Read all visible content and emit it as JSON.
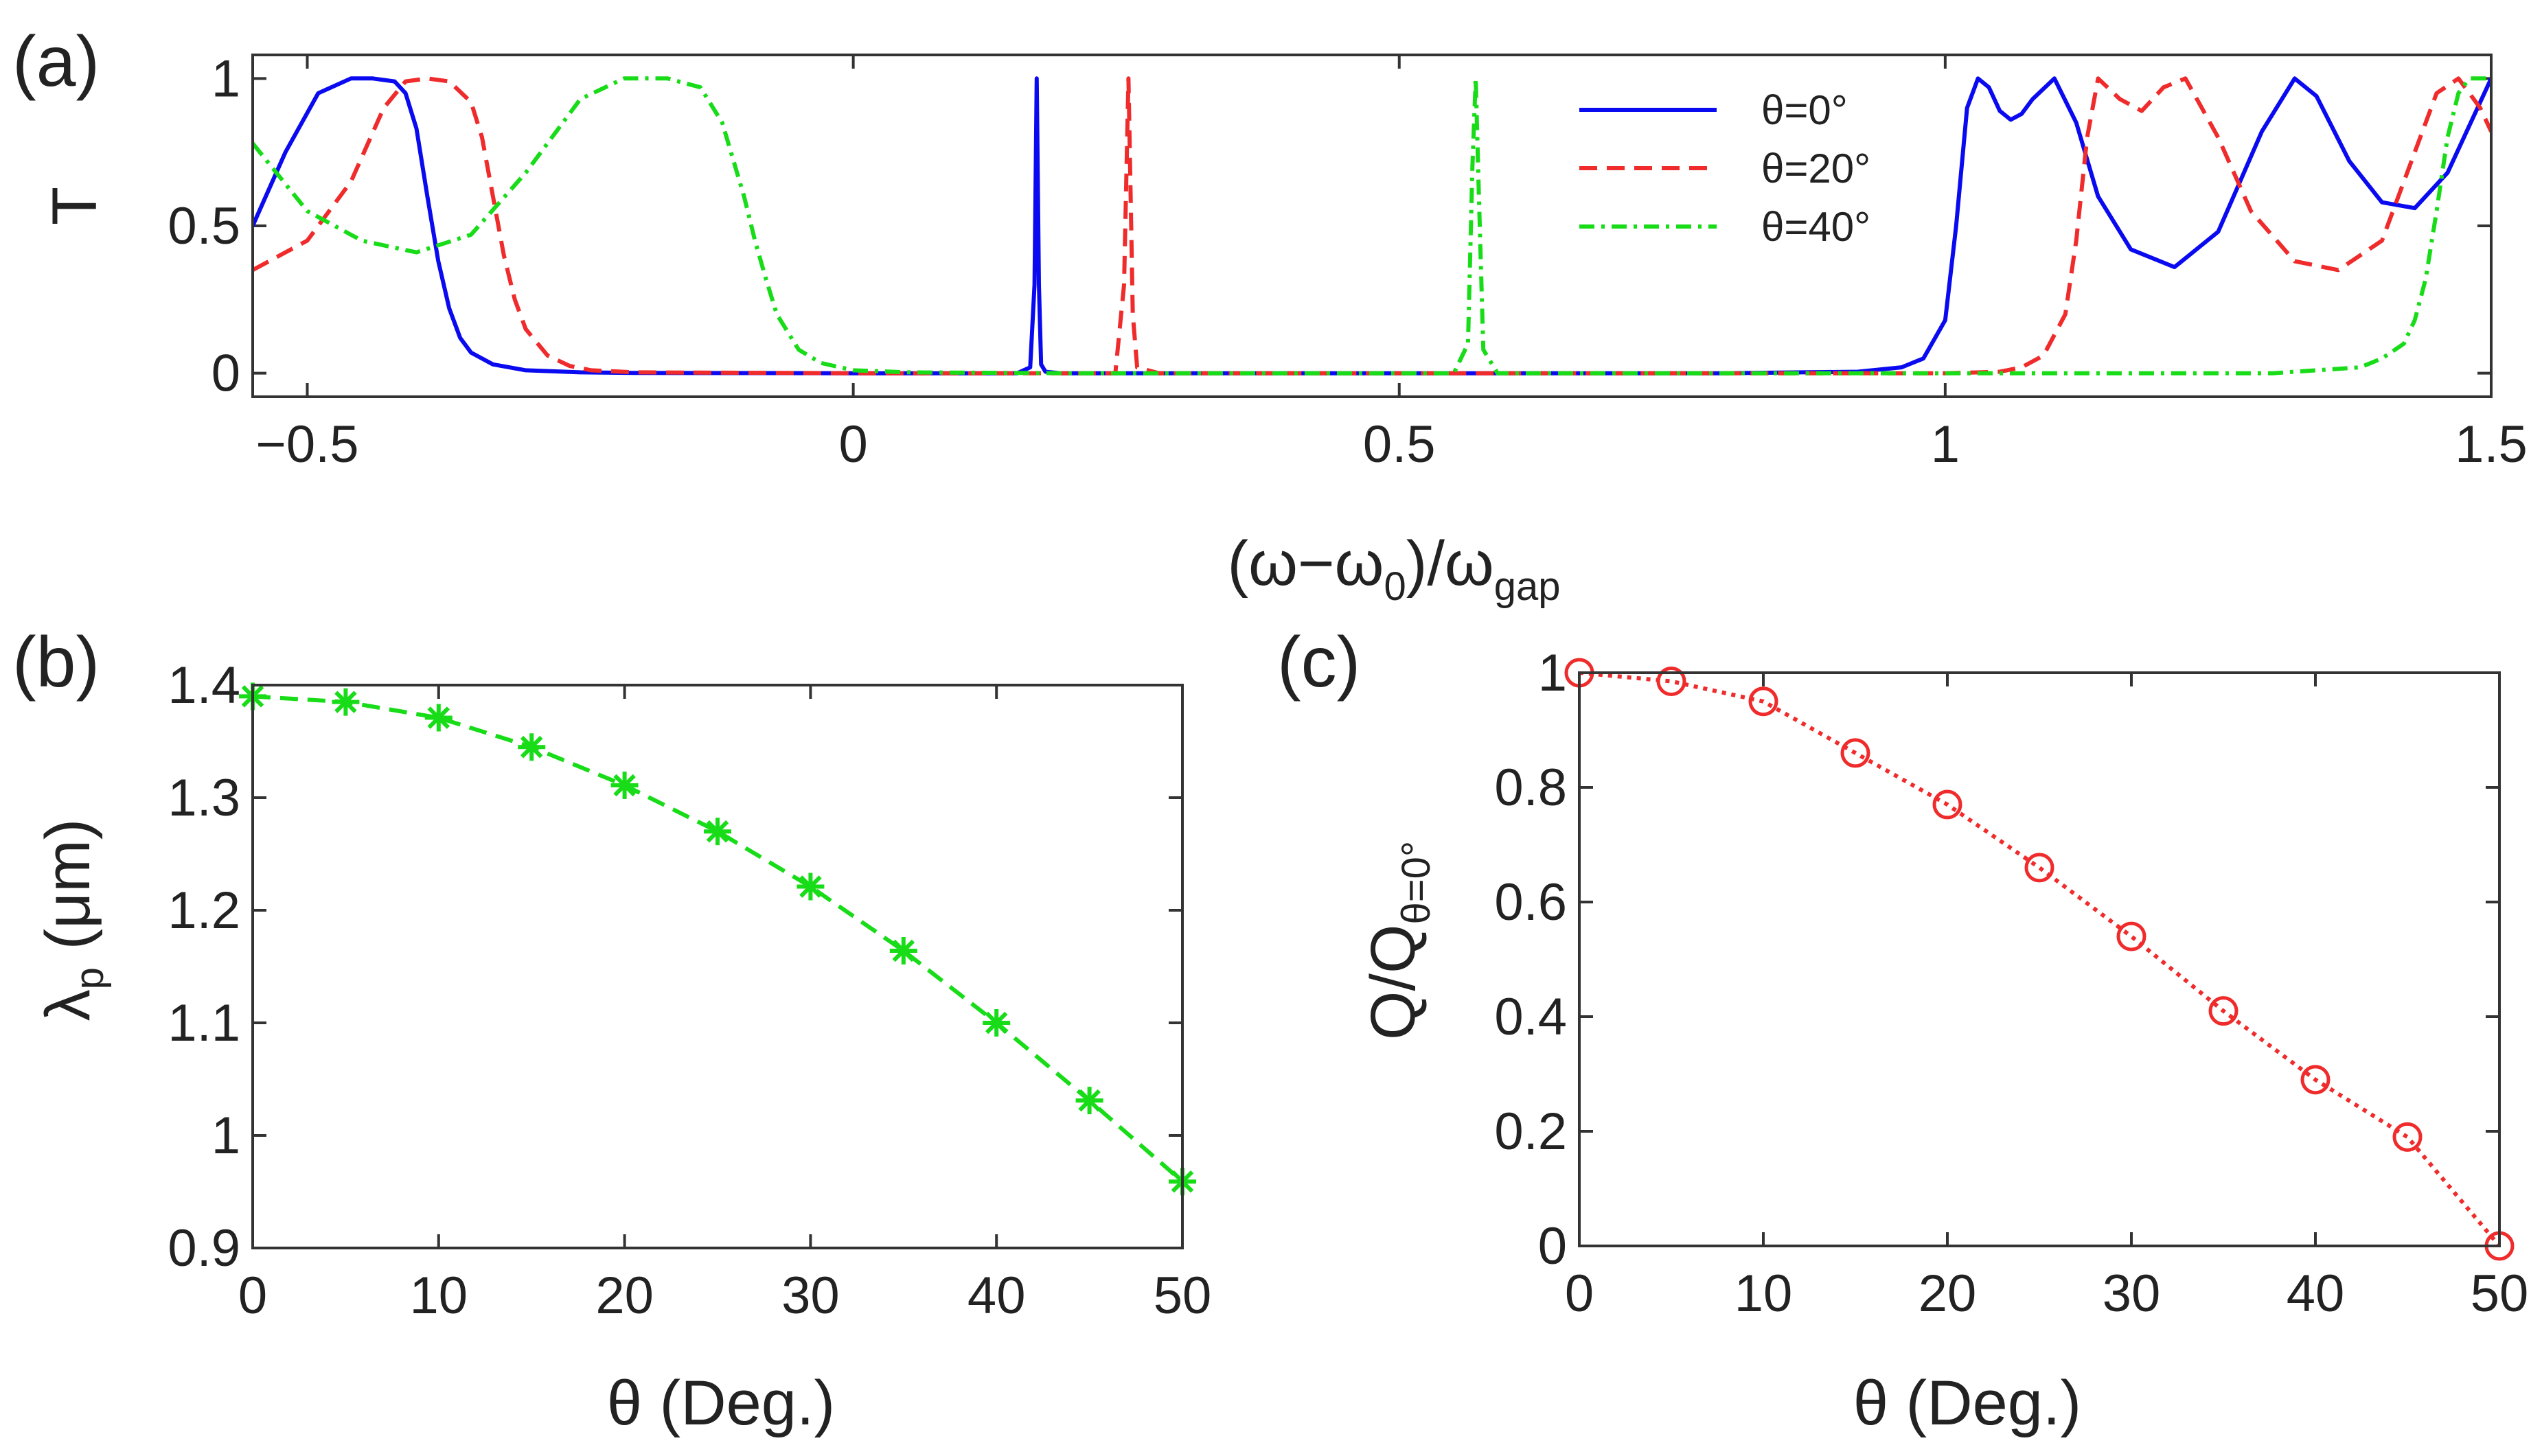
{
  "chart_data": [
    {
      "panel": "(a)",
      "type": "line",
      "xlabel": {
        "main": "(ω−ω",
        "sub0": "0",
        "mid": ")/ω",
        "sub1": "gap"
      },
      "ylabel": "T",
      "xlim": [
        -0.55,
        1.5
      ],
      "ylim": [
        -0.08,
        1.08
      ],
      "xticks": [
        -0.5,
        0,
        0.5,
        1,
        1.5
      ],
      "xtick_labels": [
        "−0.5",
        "0",
        "0.5",
        "1",
        "1.5"
      ],
      "yticks": [
        0,
        0.5,
        1
      ],
      "ytick_labels": [
        "0",
        "0.5",
        "1"
      ],
      "legend_position": "top-right",
      "series": [
        {
          "name": "θ=0°",
          "color": "#0a0af0",
          "dash": "solid",
          "x": [
            -0.55,
            -0.52,
            -0.49,
            -0.46,
            -0.44,
            -0.42,
            -0.41,
            -0.4,
            -0.39,
            -0.38,
            -0.37,
            -0.36,
            -0.35,
            -0.33,
            -0.3,
            -0.25,
            -0.2,
            0.0,
            0.15,
            0.162,
            0.166,
            0.168,
            0.17,
            0.172,
            0.176,
            0.19,
            0.4,
            0.8,
            0.92,
            0.96,
            0.98,
            1.0,
            1.01,
            1.02,
            1.03,
            1.04,
            1.05,
            1.06,
            1.07,
            1.08,
            1.1,
            1.12,
            1.14,
            1.17,
            1.21,
            1.25,
            1.29,
            1.32,
            1.34,
            1.37,
            1.4,
            1.43,
            1.46,
            1.5
          ],
          "y": [
            0.5,
            0.75,
            0.95,
            1.0,
            1.0,
            0.99,
            0.95,
            0.83,
            0.6,
            0.38,
            0.22,
            0.12,
            0.07,
            0.03,
            0.01,
            0.003,
            0.001,
            0,
            0,
            0.02,
            0.3,
            1.0,
            0.3,
            0.03,
            0.005,
            0,
            0,
            0,
            0.005,
            0.02,
            0.05,
            0.18,
            0.5,
            0.9,
            1.0,
            0.97,
            0.89,
            0.86,
            0.88,
            0.93,
            1.0,
            0.85,
            0.6,
            0.42,
            0.36,
            0.48,
            0.82,
            1.0,
            0.94,
            0.72,
            0.58,
            0.56,
            0.68,
            1.0
          ]
        },
        {
          "name": "θ=20°",
          "color": "#ef2b2b",
          "dash": "dashed",
          "x": [
            -0.55,
            -0.5,
            -0.46,
            -0.43,
            -0.41,
            -0.39,
            -0.37,
            -0.35,
            -0.34,
            -0.33,
            -0.32,
            -0.31,
            -0.3,
            -0.28,
            -0.26,
            -0.24,
            -0.2,
            0.0,
            0.24,
            0.248,
            0.252,
            0.254,
            0.256,
            0.26,
            0.28,
            0.7,
            1.0,
            1.05,
            1.07,
            1.09,
            1.11,
            1.12,
            1.13,
            1.14,
            1.16,
            1.18,
            1.2,
            1.22,
            1.25,
            1.28,
            1.32,
            1.36,
            1.4,
            1.43,
            1.45,
            1.47,
            1.49,
            1.5
          ],
          "y": [
            0.35,
            0.45,
            0.65,
            0.9,
            0.99,
            1.0,
            0.99,
            0.92,
            0.8,
            0.6,
            0.4,
            0.25,
            0.15,
            0.06,
            0.025,
            0.01,
            0.003,
            0,
            0,
            0.3,
            1.0,
            0.6,
            0.2,
            0.02,
            0,
            0,
            0,
            0.005,
            0.02,
            0.06,
            0.2,
            0.45,
            0.8,
            1.0,
            0.93,
            0.89,
            0.97,
            1.0,
            0.8,
            0.55,
            0.38,
            0.35,
            0.45,
            0.75,
            0.95,
            1.0,
            0.9,
            0.82
          ]
        },
        {
          "name": "θ=40°",
          "color": "#18dc18",
          "dash": "dashdot",
          "x": [
            -0.55,
            -0.5,
            -0.45,
            -0.4,
            -0.35,
            -0.3,
            -0.25,
            -0.21,
            -0.17,
            -0.14,
            -0.12,
            -0.1,
            -0.09,
            -0.08,
            -0.07,
            -0.05,
            -0.03,
            0.0,
            0.05,
            0.2,
            0.55,
            0.563,
            0.567,
            0.57,
            0.573,
            0.577,
            0.59,
            1.0,
            1.3,
            1.38,
            1.4,
            1.42,
            1.43,
            1.44,
            1.45,
            1.46,
            1.47,
            1.48,
            1.5
          ],
          "y": [
            0.78,
            0.55,
            0.45,
            0.41,
            0.47,
            0.68,
            0.93,
            1.0,
            1.0,
            0.97,
            0.85,
            0.6,
            0.45,
            0.32,
            0.2,
            0.08,
            0.035,
            0.01,
            0.003,
            0,
            0,
            0.1,
            0.7,
            1.0,
            0.6,
            0.08,
            0,
            0,
            0,
            0.02,
            0.05,
            0.1,
            0.18,
            0.32,
            0.55,
            0.8,
            0.95,
            1.0,
            1.0
          ]
        }
      ]
    },
    {
      "panel": "(b)",
      "type": "line",
      "xlabel": "θ (Deg.)",
      "ylabel": {
        "main": "λ",
        "sub": "p",
        "rest": " (μm)"
      },
      "xlim": [
        0,
        50
      ],
      "ylim": [
        0.9,
        1.4
      ],
      "xticks": [
        0,
        10,
        20,
        30,
        40,
        50
      ],
      "xtick_labels": [
        "0",
        "10",
        "20",
        "30",
        "40",
        "50"
      ],
      "yticks": [
        0.9,
        1.0,
        1.1,
        1.2,
        1.3,
        1.4
      ],
      "ytick_labels": [
        "0.9",
        "1",
        "1.1",
        "1.2",
        "1.3",
        "1.4"
      ],
      "series": [
        {
          "color": "#18dc18",
          "dash": "dashed",
          "marker": "asterisk",
          "x": [
            0,
            5,
            10,
            15,
            20,
            25,
            30,
            35,
            40,
            45,
            50
          ],
          "y": [
            1.39,
            1.385,
            1.371,
            1.345,
            1.311,
            1.27,
            1.221,
            1.164,
            1.1,
            1.031,
            0.959
          ]
        }
      ]
    },
    {
      "panel": "(c)",
      "type": "line",
      "xlabel": "θ (Deg.)",
      "ylabel": {
        "main": "Q/Q",
        "sub": "θ=0°"
      },
      "xlim": [
        0,
        50
      ],
      "ylim": [
        0,
        1
      ],
      "xticks": [
        0,
        10,
        20,
        30,
        40,
        50
      ],
      "xtick_labels": [
        "0",
        "10",
        "20",
        "30",
        "40",
        "50"
      ],
      "yticks": [
        0,
        0.2,
        0.4,
        0.6,
        0.8,
        1.0
      ],
      "ytick_labels": [
        "0",
        "0.2",
        "0.4",
        "0.6",
        "0.8",
        "1"
      ],
      "series": [
        {
          "color": "#ef2b2b",
          "dash": "dotted",
          "marker": "circle",
          "x": [
            0,
            5,
            10,
            15,
            20,
            25,
            30,
            35,
            40,
            45,
            50
          ],
          "y": [
            1.0,
            0.985,
            0.95,
            0.86,
            0.77,
            0.66,
            0.54,
            0.41,
            0.29,
            0.19,
            0.0
          ]
        }
      ]
    }
  ]
}
